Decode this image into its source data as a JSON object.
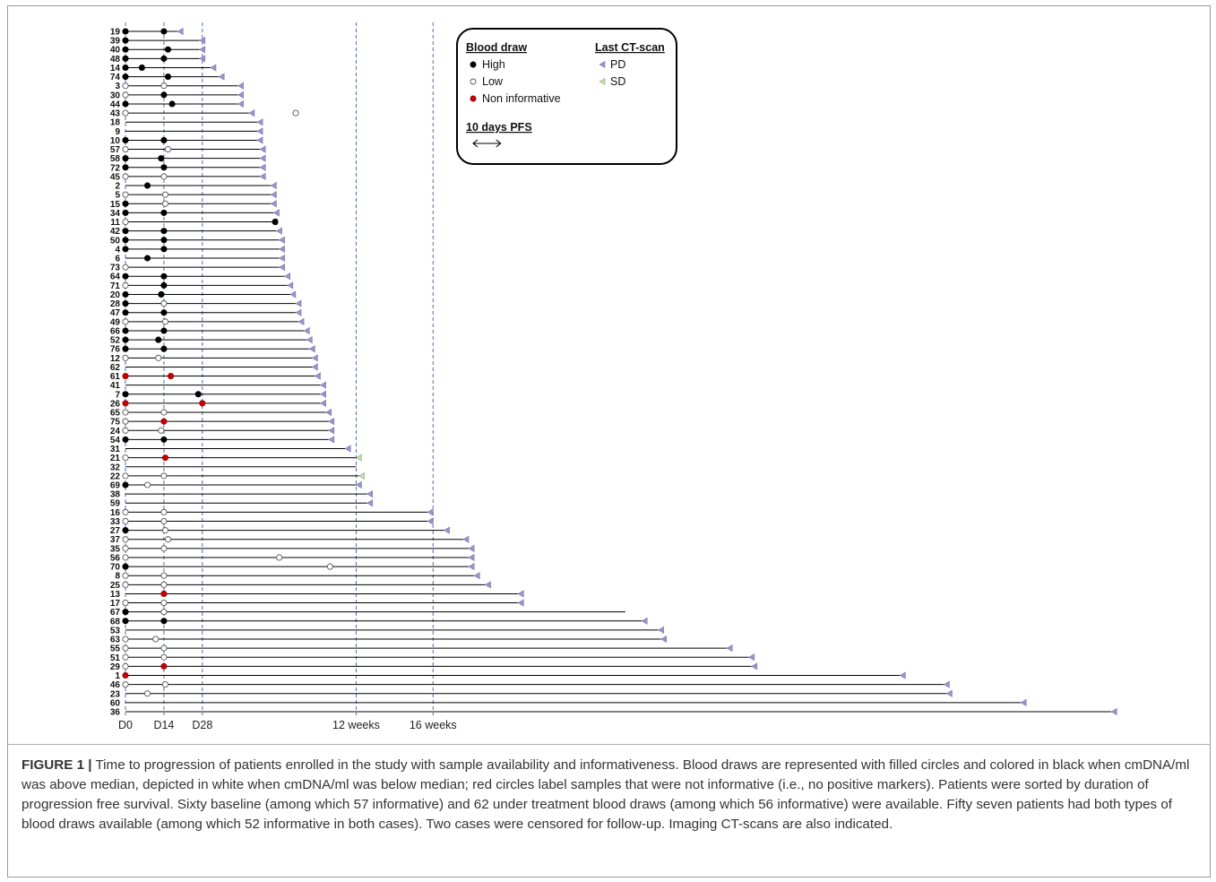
{
  "chart_data": {
    "type": "timeline",
    "x_ticks": [
      {
        "label": "D0",
        "day": 0
      },
      {
        "label": "D14",
        "day": 14
      },
      {
        "label": "D28",
        "day": 28
      },
      {
        "label": "12 weeks",
        "day": 84
      },
      {
        "label": "16 weeks",
        "day": 112
      }
    ],
    "legend": {
      "blood_title": "Blood draw",
      "ct_title": "Last CT-scan",
      "pfs_label": "10 days PFS",
      "pfs_days": 10,
      "blood_items": [
        {
          "label": "High",
          "fill": "#000000",
          "stroke": "#000000"
        },
        {
          "label": "Low",
          "fill": "#ffffff",
          "stroke": "#555555"
        },
        {
          "label": "Non informative",
          "fill": "#cc0000",
          "stroke": "#990000"
        }
      ],
      "ct_items": [
        {
          "label": "PD",
          "color": "#9b93c9"
        },
        {
          "label": "SD",
          "color": "#c2dbb4"
        }
      ]
    },
    "colors": {
      "dashed": "#4a6fb3",
      "line": "#000000"
    },
    "patients": [
      {
        "id": "19",
        "pfs": 19,
        "ct": "PD",
        "draws": [
          {
            "d": 0,
            "t": "H"
          },
          {
            "d": 14,
            "t": "H"
          }
        ]
      },
      {
        "id": "39",
        "pfs": 27,
        "ct": "PD",
        "draws": [
          {
            "d": 0,
            "t": "H"
          }
        ]
      },
      {
        "id": "40",
        "pfs": 27,
        "ct": "PD",
        "draws": [
          {
            "d": 0,
            "t": "H"
          },
          {
            "d": 15.5,
            "t": "H"
          }
        ]
      },
      {
        "id": "48",
        "pfs": 27,
        "ct": "PD",
        "draws": [
          {
            "d": 0,
            "t": "H"
          },
          {
            "d": 14,
            "t": "H"
          }
        ]
      },
      {
        "id": "14",
        "pfs": 31,
        "ct": "PD",
        "draws": [
          {
            "d": 0,
            "t": "H"
          },
          {
            "d": 6,
            "t": "H"
          }
        ]
      },
      {
        "id": "74",
        "pfs": 34,
        "ct": "PD",
        "draws": [
          {
            "d": 0,
            "t": "H"
          },
          {
            "d": 15.5,
            "t": "H"
          }
        ]
      },
      {
        "id": "3",
        "pfs": 41,
        "ct": "PD",
        "draws": [
          {
            "d": 0,
            "t": "L"
          },
          {
            "d": 14,
            "t": "L"
          }
        ]
      },
      {
        "id": "30",
        "pfs": 41,
        "ct": "PD",
        "draws": [
          {
            "d": 0,
            "t": "L"
          },
          {
            "d": 14,
            "t": "H"
          }
        ]
      },
      {
        "id": "44",
        "pfs": 41,
        "ct": "PD",
        "draws": [
          {
            "d": 0,
            "t": "H"
          },
          {
            "d": 17,
            "t": "H"
          }
        ]
      },
      {
        "id": "43",
        "pfs": 45,
        "ct": "PD",
        "draws": [
          {
            "d": 0,
            "t": "L"
          },
          {
            "d": 62,
            "t": "L"
          }
        ]
      },
      {
        "id": "18",
        "pfs": 48,
        "ct": "PD",
        "draws": []
      },
      {
        "id": "9",
        "pfs": 48,
        "ct": "PD",
        "draws": []
      },
      {
        "id": "10",
        "pfs": 48,
        "ct": "PD",
        "draws": [
          {
            "d": 0,
            "t": "H"
          },
          {
            "d": 14,
            "t": "H"
          }
        ]
      },
      {
        "id": "57",
        "pfs": 49,
        "ct": "PD",
        "draws": [
          {
            "d": 0,
            "t": "L"
          },
          {
            "d": 15.5,
            "t": "L"
          }
        ]
      },
      {
        "id": "58",
        "pfs": 49,
        "ct": "PD",
        "draws": [
          {
            "d": 0,
            "t": "H"
          },
          {
            "d": 13,
            "t": "H"
          }
        ]
      },
      {
        "id": "72",
        "pfs": 49,
        "ct": "PD",
        "draws": [
          {
            "d": 0,
            "t": "H"
          },
          {
            "d": 14,
            "t": "H"
          }
        ]
      },
      {
        "id": "45",
        "pfs": 49,
        "ct": "PD",
        "draws": [
          {
            "d": 0,
            "t": "L"
          },
          {
            "d": 14,
            "t": "L"
          }
        ]
      },
      {
        "id": "2",
        "pfs": 53,
        "ct": "PD",
        "draws": [
          {
            "d": 8,
            "t": "H"
          }
        ]
      },
      {
        "id": "5",
        "pfs": 53,
        "ct": "PD",
        "draws": [
          {
            "d": 0,
            "t": "L"
          },
          {
            "d": 14.5,
            "t": "L"
          }
        ]
      },
      {
        "id": "15",
        "pfs": 53,
        "ct": "PD",
        "draws": [
          {
            "d": 0,
            "t": "H"
          },
          {
            "d": 14.5,
            "t": "L"
          }
        ]
      },
      {
        "id": "34",
        "pfs": 54,
        "ct": "PD",
        "draws": [
          {
            "d": 0,
            "t": "H"
          },
          {
            "d": 14,
            "t": "H"
          }
        ]
      },
      {
        "id": "11",
        "pfs": 55,
        "ct": "censored",
        "draws": [
          {
            "d": 0,
            "t": "L"
          },
          {
            "d": 54.5,
            "t": "H"
          }
        ]
      },
      {
        "id": "42",
        "pfs": 55,
        "ct": "PD",
        "draws": [
          {
            "d": 0,
            "t": "H"
          },
          {
            "d": 14,
            "t": "H"
          }
        ]
      },
      {
        "id": "50",
        "pfs": 56,
        "ct": "PD",
        "draws": [
          {
            "d": 0,
            "t": "H"
          },
          {
            "d": 14,
            "t": "H"
          }
        ]
      },
      {
        "id": "4",
        "pfs": 56,
        "ct": "PD",
        "draws": [
          {
            "d": 0,
            "t": "H"
          },
          {
            "d": 14,
            "t": "H"
          }
        ]
      },
      {
        "id": "6",
        "pfs": 56,
        "ct": "PD",
        "draws": [
          {
            "d": 8,
            "t": "H"
          }
        ]
      },
      {
        "id": "73",
        "pfs": 56,
        "ct": "PD",
        "draws": [
          {
            "d": 0,
            "t": "L"
          }
        ]
      },
      {
        "id": "64",
        "pfs": 58,
        "ct": "PD",
        "draws": [
          {
            "d": 0,
            "t": "H"
          },
          {
            "d": 14,
            "t": "H"
          }
        ]
      },
      {
        "id": "71",
        "pfs": 59,
        "ct": "PD",
        "draws": [
          {
            "d": 0,
            "t": "L"
          },
          {
            "d": 14,
            "t": "H"
          }
        ]
      },
      {
        "id": "20",
        "pfs": 60,
        "ct": "PD",
        "draws": [
          {
            "d": 0,
            "t": "H"
          },
          {
            "d": 13,
            "t": "H"
          }
        ]
      },
      {
        "id": "28",
        "pfs": 62,
        "ct": "PD",
        "draws": [
          {
            "d": 0,
            "t": "H"
          },
          {
            "d": 14,
            "t": "L"
          }
        ]
      },
      {
        "id": "47",
        "pfs": 62,
        "ct": "PD",
        "draws": [
          {
            "d": 0,
            "t": "H"
          },
          {
            "d": 14,
            "t": "H"
          }
        ]
      },
      {
        "id": "49",
        "pfs": 63,
        "ct": "PD",
        "draws": [
          {
            "d": 0,
            "t": "L"
          },
          {
            "d": 14.5,
            "t": "L"
          }
        ]
      },
      {
        "id": "66",
        "pfs": 65,
        "ct": "PD",
        "draws": [
          {
            "d": 0,
            "t": "H"
          },
          {
            "d": 14,
            "t": "H"
          }
        ]
      },
      {
        "id": "52",
        "pfs": 66,
        "ct": "PD",
        "draws": [
          {
            "d": 0,
            "t": "H"
          },
          {
            "d": 12,
            "t": "H"
          }
        ]
      },
      {
        "id": "76",
        "pfs": 67,
        "ct": "PD",
        "draws": [
          {
            "d": 0,
            "t": "H"
          },
          {
            "d": 14,
            "t": "H"
          }
        ]
      },
      {
        "id": "12",
        "pfs": 68,
        "ct": "PD",
        "draws": [
          {
            "d": 0,
            "t": "L"
          },
          {
            "d": 12,
            "t": "L"
          }
        ]
      },
      {
        "id": "62",
        "pfs": 68,
        "ct": "PD",
        "draws": []
      },
      {
        "id": "61",
        "pfs": 69,
        "ct": "PD",
        "draws": [
          {
            "d": 0,
            "t": "N"
          },
          {
            "d": 16.5,
            "t": "N"
          }
        ]
      },
      {
        "id": "41",
        "pfs": 71,
        "ct": "PD",
        "draws": []
      },
      {
        "id": "7",
        "pfs": 71,
        "ct": "PD",
        "draws": [
          {
            "d": 0,
            "t": "H"
          },
          {
            "d": 26.5,
            "t": "H"
          }
        ]
      },
      {
        "id": "26",
        "pfs": 71,
        "ct": "PD",
        "draws": [
          {
            "d": 0,
            "t": "N"
          },
          {
            "d": 28,
            "t": "N"
          }
        ]
      },
      {
        "id": "65",
        "pfs": 73,
        "ct": "PD",
        "draws": [
          {
            "d": 0,
            "t": "L"
          },
          {
            "d": 14,
            "t": "L"
          }
        ]
      },
      {
        "id": "75",
        "pfs": 74,
        "ct": "PD",
        "draws": [
          {
            "d": 0,
            "t": "L"
          },
          {
            "d": 14,
            "t": "N"
          }
        ]
      },
      {
        "id": "24",
        "pfs": 74,
        "ct": "PD",
        "draws": [
          {
            "d": 0,
            "t": "L"
          },
          {
            "d": 13,
            "t": "L"
          }
        ]
      },
      {
        "id": "54",
        "pfs": 74,
        "ct": "PD",
        "draws": [
          {
            "d": 0,
            "t": "H"
          },
          {
            "d": 14,
            "t": "H"
          }
        ]
      },
      {
        "id": "31",
        "pfs": 80,
        "ct": "PD",
        "draws": []
      },
      {
        "id": "21",
        "pfs": 84,
        "ct": "SD",
        "draws": [
          {
            "d": 0,
            "t": "L"
          },
          {
            "d": 14.5,
            "t": "N"
          }
        ]
      },
      {
        "id": "32",
        "pfs": 84,
        "ct": "none",
        "draws": []
      },
      {
        "id": "22",
        "pfs": 85,
        "ct": "SD",
        "draws": [
          {
            "d": 0,
            "t": "L"
          },
          {
            "d": 14,
            "t": "L"
          }
        ]
      },
      {
        "id": "69",
        "pfs": 84,
        "ct": "PD",
        "draws": [
          {
            "d": 0,
            "t": "H"
          },
          {
            "d": 8,
            "t": "L"
          }
        ]
      },
      {
        "id": "38",
        "pfs": 88,
        "ct": "PD",
        "draws": []
      },
      {
        "id": "59",
        "pfs": 88,
        "ct": "PD",
        "draws": []
      },
      {
        "id": "16",
        "pfs": 110,
        "ct": "PD",
        "draws": [
          {
            "d": 0,
            "t": "L"
          },
          {
            "d": 14,
            "t": "L"
          }
        ]
      },
      {
        "id": "33",
        "pfs": 110,
        "ct": "PD",
        "draws": [
          {
            "d": 0,
            "t": "L"
          },
          {
            "d": 14,
            "t": "L"
          }
        ]
      },
      {
        "id": "27",
        "pfs": 116,
        "ct": "PD",
        "draws": [
          {
            "d": 0,
            "t": "H"
          },
          {
            "d": 14.5,
            "t": "L"
          }
        ]
      },
      {
        "id": "37",
        "pfs": 123,
        "ct": "PD",
        "draws": [
          {
            "d": 0,
            "t": "L"
          },
          {
            "d": 15.5,
            "t": "L"
          }
        ]
      },
      {
        "id": "35",
        "pfs": 125,
        "ct": "PD",
        "draws": [
          {
            "d": 0,
            "t": "L"
          },
          {
            "d": 14,
            "t": "L"
          }
        ]
      },
      {
        "id": "56",
        "pfs": 125,
        "ct": "PD",
        "draws": [
          {
            "d": 0,
            "t": "L"
          },
          {
            "d": 56,
            "t": "L"
          }
        ]
      },
      {
        "id": "70",
        "pfs": 125,
        "ct": "PD",
        "draws": [
          {
            "d": 0,
            "t": "H"
          },
          {
            "d": 74.5,
            "t": "L"
          }
        ]
      },
      {
        "id": "8",
        "pfs": 127,
        "ct": "PD",
        "draws": [
          {
            "d": 0,
            "t": "L"
          },
          {
            "d": 14,
            "t": "L"
          }
        ]
      },
      {
        "id": "25",
        "pfs": 131,
        "ct": "PD",
        "draws": [
          {
            "d": 0,
            "t": "L"
          },
          {
            "d": 14,
            "t": "L"
          }
        ]
      },
      {
        "id": "13",
        "pfs": 143,
        "ct": "PD",
        "draws": [
          {
            "d": 14,
            "t": "N"
          }
        ]
      },
      {
        "id": "17",
        "pfs": 143,
        "ct": "PD",
        "draws": [
          {
            "d": 0,
            "t": "L"
          },
          {
            "d": 14,
            "t": "L"
          }
        ]
      },
      {
        "id": "67",
        "pfs": 182,
        "ct": "none",
        "draws": [
          {
            "d": 0,
            "t": "H"
          },
          {
            "d": 14,
            "t": "L"
          }
        ]
      },
      {
        "id": "68",
        "pfs": 188,
        "ct": "PD",
        "draws": [
          {
            "d": 0,
            "t": "H"
          },
          {
            "d": 14,
            "t": "H"
          }
        ]
      },
      {
        "id": "53",
        "pfs": 194,
        "ct": "PD",
        "draws": []
      },
      {
        "id": "63",
        "pfs": 195,
        "ct": "PD",
        "draws": [
          {
            "d": 0,
            "t": "L"
          },
          {
            "d": 11,
            "t": "L"
          }
        ]
      },
      {
        "id": "55",
        "pfs": 219,
        "ct": "PD",
        "draws": [
          {
            "d": 0,
            "t": "L"
          },
          {
            "d": 14,
            "t": "L"
          }
        ]
      },
      {
        "id": "51",
        "pfs": 227,
        "ct": "PD",
        "draws": [
          {
            "d": 0,
            "t": "L"
          },
          {
            "d": 14,
            "t": "L"
          }
        ]
      },
      {
        "id": "29",
        "pfs": 228,
        "ct": "PD",
        "draws": [
          {
            "d": 0,
            "t": "L"
          },
          {
            "d": 14,
            "t": "N"
          }
        ]
      },
      {
        "id": "1",
        "pfs": 282,
        "ct": "PD",
        "draws": [
          {
            "d": 0,
            "t": "N"
          }
        ]
      },
      {
        "id": "46",
        "pfs": 298,
        "ct": "PD",
        "draws": [
          {
            "d": 0,
            "t": "L"
          },
          {
            "d": 14.5,
            "t": "L"
          }
        ]
      },
      {
        "id": "23",
        "pfs": 299,
        "ct": "PD",
        "draws": [
          {
            "d": 8,
            "t": "L"
          }
        ]
      },
      {
        "id": "60",
        "pfs": 326,
        "ct": "PD",
        "draws": []
      },
      {
        "id": "36",
        "pfs": 359,
        "ct": "PD",
        "draws": []
      }
    ]
  },
  "caption": {
    "lead": "FIGURE 1 |",
    "text": " Time to progression of patients enrolled in the study with sample availability and informativeness. Blood draws are represented with filled circles and colored in black when cmDNA/ml was above median, depicted in white when cmDNA/ml was below median; red circles label samples that were not informative (i.e., no positive markers). Patients were sorted by duration of progression free survival. Sixty baseline (among which 57 informative) and 62 under treatment blood draws (among which 56 informative) were available. Fifty seven patients had both types of blood draws available (among which 52 informative in both cases). Two cases were censored for follow-up. Imaging CT-scans are also indicated."
  }
}
